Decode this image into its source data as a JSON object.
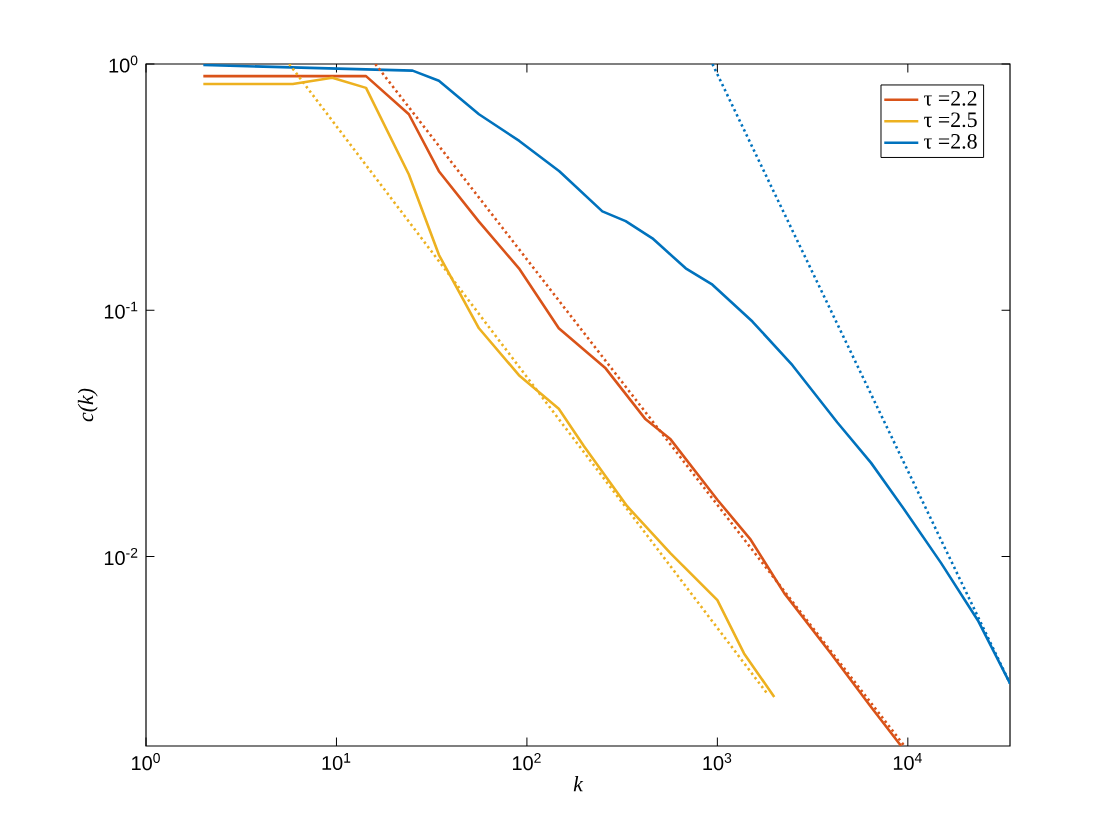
{
  "chart_data": {
    "type": "line",
    "xlabel": "k",
    "ylabel": "c(k)",
    "log": "xy",
    "legend": "top right",
    "xlim": [
      1,
      34400
    ],
    "ylim": [
      0.0017,
      1
    ],
    "xticks": [
      {
        "value": 1,
        "label": "10$^{0}$"
      },
      {
        "value": 10,
        "label": "10$^{1}$"
      },
      {
        "value": 100,
        "label": "10$^{2}$"
      },
      {
        "value": 1000,
        "label": "10$^{3}$"
      },
      {
        "value": 10000,
        "label": "10$^{4}$"
      }
    ],
    "yticks": [
      {
        "value": 0.01,
        "label": "10$^{-2}$"
      },
      {
        "value": 0.1,
        "label": "10$^{-1}$"
      },
      {
        "value": 1,
        "label": "10$^{0}$"
      }
    ],
    "series": [
      {
        "name": "τ =2.2",
        "color": "#d95319",
        "line_style": "solid",
        "x": [
          2,
          14.3,
          24.0,
          34.5,
          56.0,
          90.8,
          147,
          259,
          417,
          568,
          1000,
          1496,
          2244,
          3945,
          6412,
          9226
        ],
        "values": [
          0.893,
          0.893,
          0.625,
          0.367,
          0.229,
          0.148,
          0.0845,
          0.0581,
          0.0363,
          0.0299,
          0.017,
          0.0117,
          0.0071,
          0.00404,
          0.00245,
          0.0017
        ]
      },
      {
        "name": "τ =2.5",
        "color": "#edb120",
        "line_style": "solid",
        "x": [
          2,
          5.9,
          9.5,
          14.3,
          24.0,
          34.5,
          56.0,
          90.8,
          147,
          199,
          336,
          568,
          1000,
          1380,
          1990
        ],
        "values": [
          0.83,
          0.83,
          0.88,
          0.8,
          0.356,
          0.168,
          0.0845,
          0.0545,
          0.0398,
          0.0281,
          0.016,
          0.0103,
          0.00665,
          0.00404,
          0.00269
        ]
      },
      {
        "name": "τ =2.8",
        "color": "#0072bd",
        "line_style": "solid",
        "x": [
          2,
          25.1,
          34.5,
          56.0,
          91.2,
          148,
          249,
          330,
          456,
          682,
          942,
          1528,
          2477,
          4266,
          6412,
          9594,
          14962,
          23335,
          34400
        ],
        "values": [
          0.99,
          0.94,
          0.855,
          0.625,
          0.487,
          0.367,
          0.252,
          0.23,
          0.196,
          0.148,
          0.127,
          0.09,
          0.0598,
          0.035,
          0.024,
          0.0155,
          0.0094,
          0.0055,
          0.00305
        ]
      },
      {
        "color": "#d95319",
        "line_style": "dotted",
        "x": [
          16,
          9600
        ],
        "values": [
          1,
          0.0017
        ]
      },
      {
        "color": "#edb120",
        "line_style": "dotted",
        "x": [
          5.65,
          1830
        ],
        "values": [
          1,
          0.00277
        ]
      },
      {
        "color": "#0072bd",
        "line_style": "dotted",
        "x": [
          942,
          34400
        ],
        "values": [
          1,
          0.00305
        ]
      }
    ]
  }
}
